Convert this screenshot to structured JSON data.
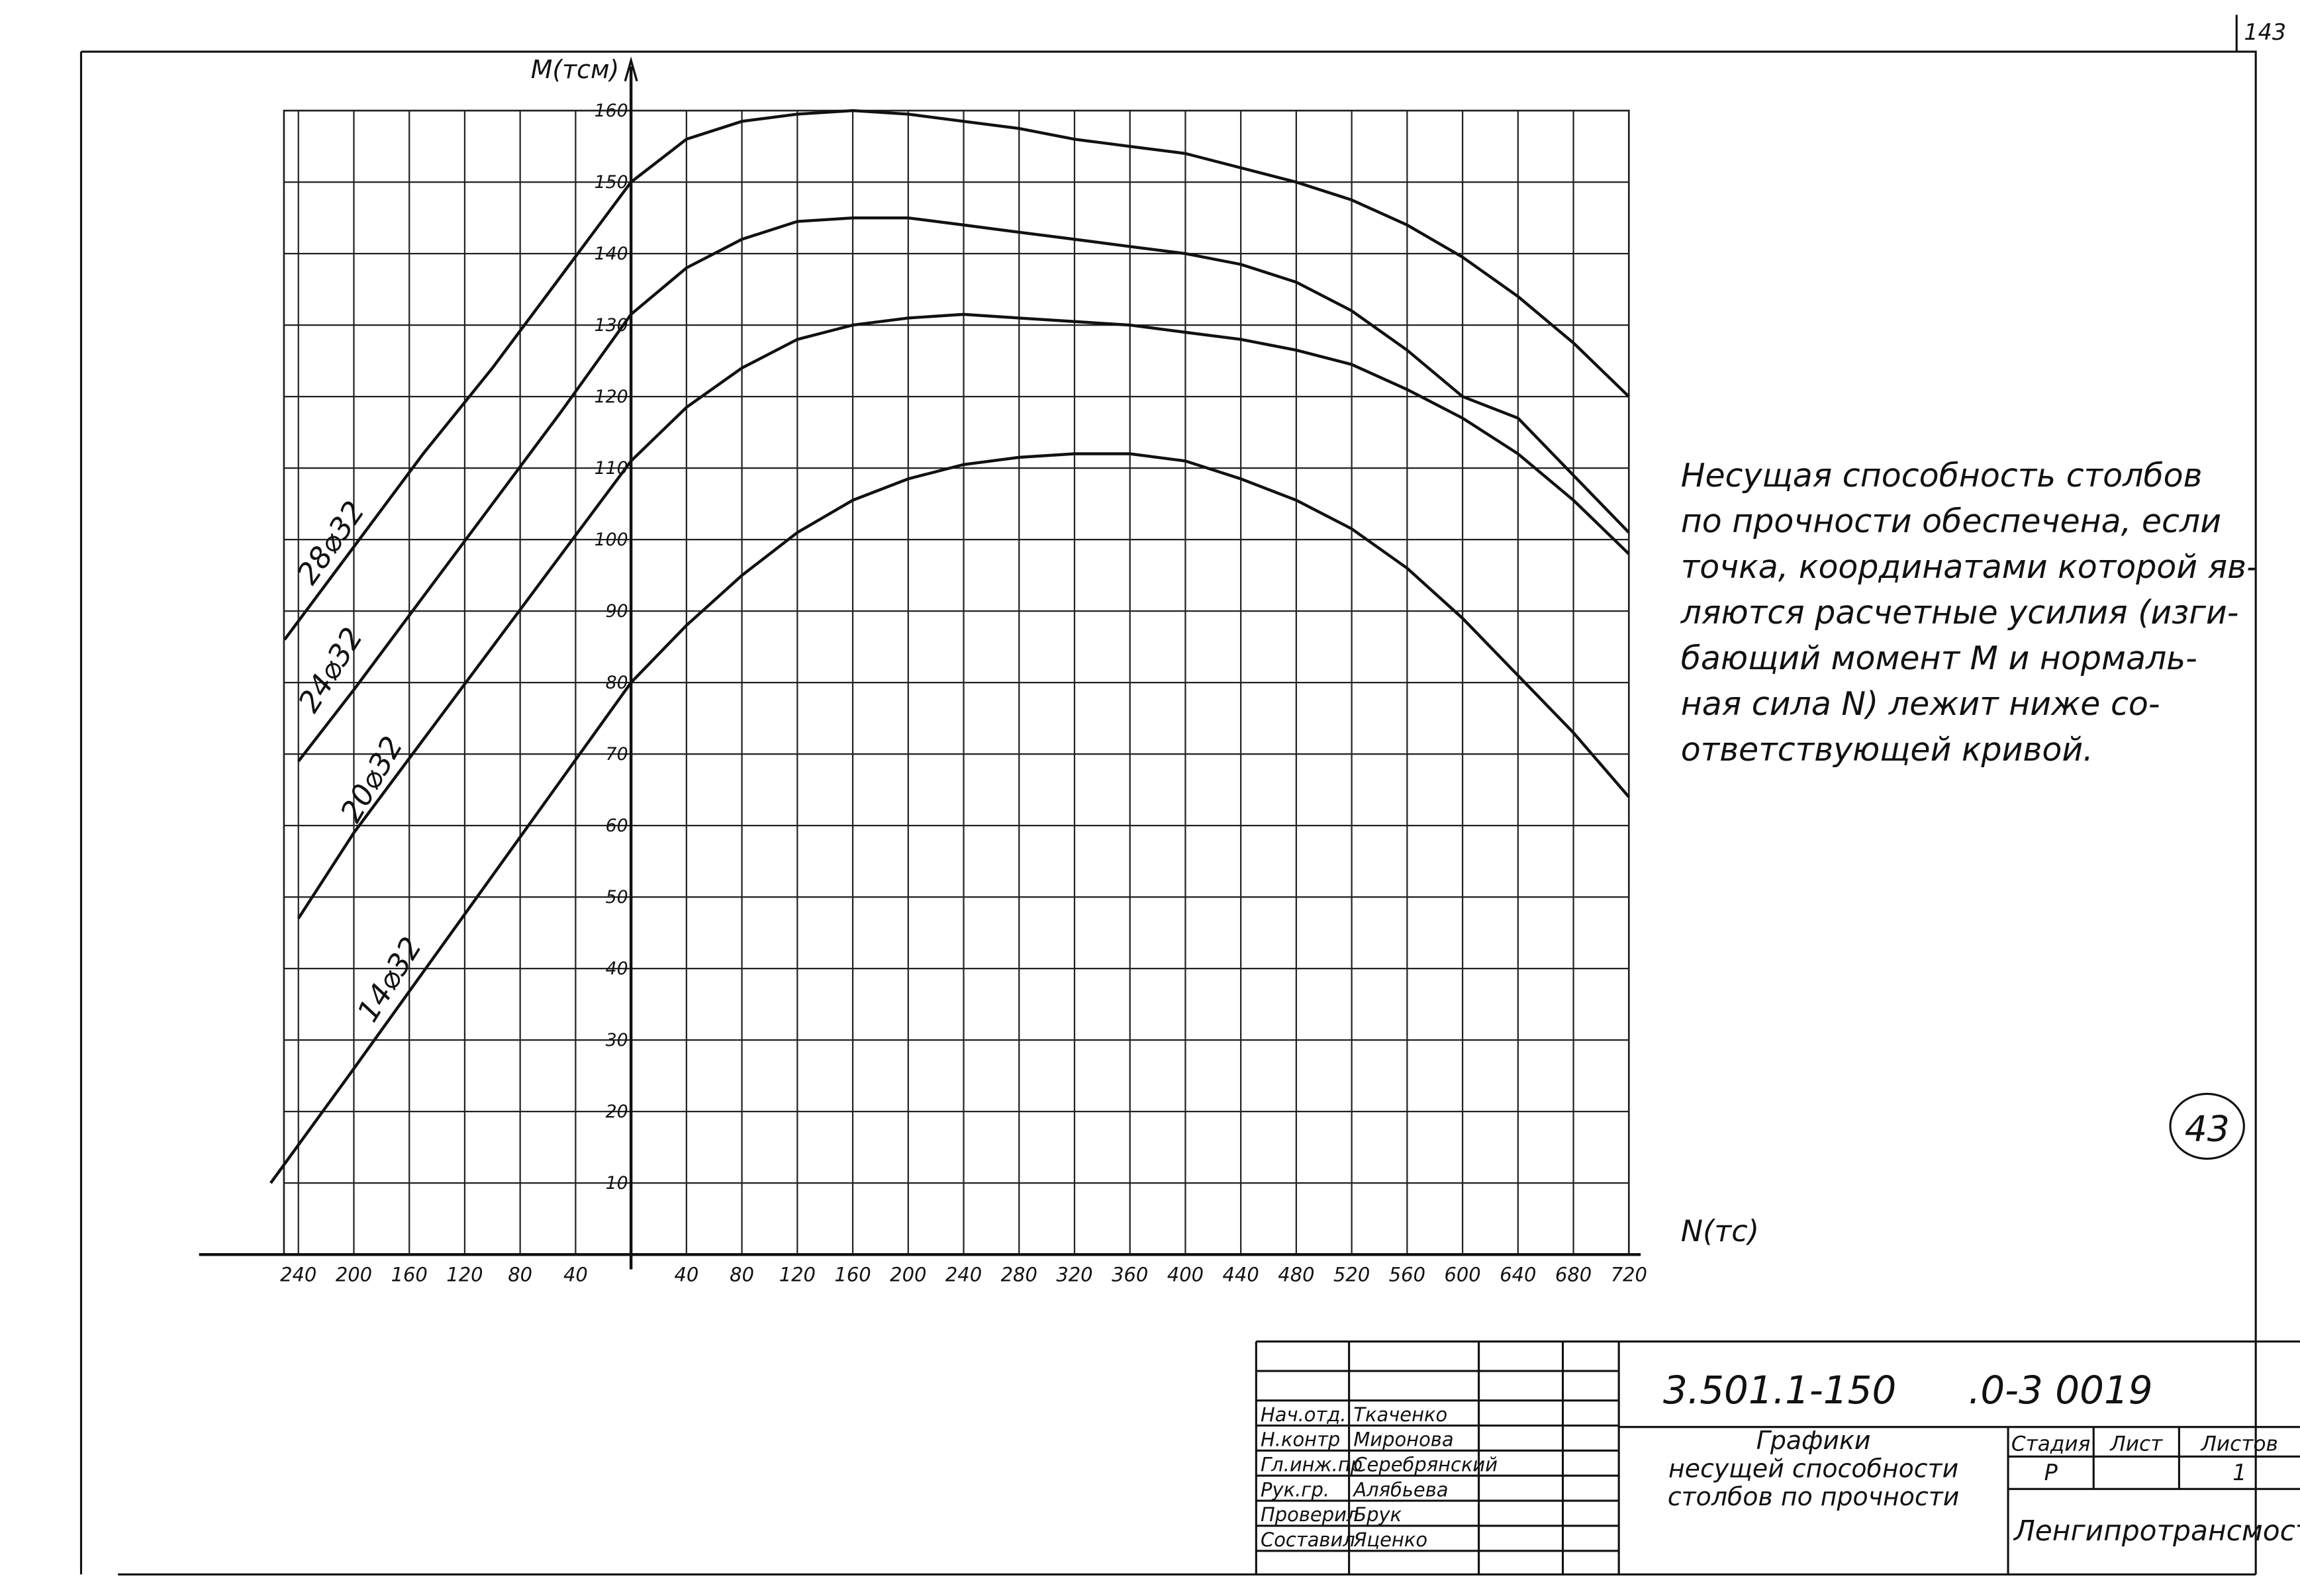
{
  "chart_data": {
    "type": "line",
    "x_label": "N(тс)",
    "y_label": "M(тсм)",
    "xlim": [
      -260,
      720
    ],
    "ylim": [
      0,
      160
    ],
    "xticks": [
      {
        "value": -240,
        "label": "240"
      },
      {
        "value": -200,
        "label": "200"
      },
      {
        "value": -160,
        "label": "160"
      },
      {
        "value": -120,
        "label": "120"
      },
      {
        "value": -80,
        "label": "80"
      },
      {
        "value": -40,
        "label": "40"
      },
      40,
      80,
      120,
      160,
      200,
      240,
      280,
      320,
      360,
      400,
      440,
      480,
      520,
      560,
      600,
      640,
      680,
      720
    ],
    "yticks": [
      10,
      20,
      30,
      40,
      50,
      60,
      70,
      80,
      90,
      100,
      110,
      120,
      130,
      140,
      150,
      160
    ],
    "grid": true,
    "series": [
      {
        "name": "28⌀32",
        "color": "#111111",
        "x": [
          -250,
          -200,
          -150,
          -100,
          -50,
          0,
          40,
          80,
          120,
          160,
          200,
          240,
          280,
          320,
          360,
          400,
          440,
          480,
          520,
          560,
          600,
          640,
          680,
          720
        ],
        "values": [
          86,
          99,
          112,
          124,
          137,
          150,
          156,
          158.5,
          159.5,
          160,
          159.5,
          158.5,
          157.5,
          156,
          155,
          154,
          152,
          150,
          147.5,
          144,
          139.5,
          134,
          127.5,
          120
        ]
      },
      {
        "name": "24⌀32",
        "color": "#111111",
        "x": [
          -240,
          -200,
          -150,
          -100,
          -50,
          0,
          40,
          80,
          120,
          160,
          200,
          240,
          280,
          320,
          360,
          400,
          440,
          480,
          520,
          560,
          600,
          640,
          680,
          720
        ],
        "values": [
          69,
          79,
          92,
          105,
          118,
          131.5,
          138,
          142,
          144.5,
          145,
          145,
          144,
          143,
          142,
          141,
          140,
          138.5,
          136,
          132,
          126.5,
          120,
          117,
          109,
          101
        ]
      },
      {
        "name": "20⌀32",
        "color": "#111111",
        "x": [
          -240,
          -200,
          -150,
          -100,
          -50,
          0,
          40,
          80,
          120,
          160,
          200,
          240,
          280,
          320,
          360,
          400,
          440,
          480,
          520,
          560,
          600,
          640,
          680,
          720
        ],
        "values": [
          47,
          59,
          72,
          85,
          98,
          111,
          118.5,
          124,
          128,
          130,
          131,
          131.5,
          131,
          130.5,
          130,
          129,
          128,
          126.5,
          124.5,
          121,
          117,
          112,
          105.5,
          98
        ]
      },
      {
        "name": "14⌀32",
        "color": "#111111",
        "x": [
          -260,
          -200,
          -150,
          -100,
          -50,
          0,
          40,
          80,
          120,
          160,
          200,
          240,
          280,
          320,
          360,
          400,
          440,
          480,
          520,
          560,
          600,
          640,
          680,
          720
        ],
        "values": [
          10,
          26,
          39.5,
          53,
          66.5,
          80,
          88,
          95,
          101,
          105.5,
          108.5,
          110.5,
          111.5,
          112,
          112,
          111,
          108.5,
          105.5,
          101.5,
          96,
          89,
          81,
          73,
          64
        ]
      }
    ]
  },
  "note": [
    "Несущая  способность  столбов",
    "по прочности  обеспечена, если",
    "точка, координатами  которой яв-",
    "ляются расчетные  усилия (изги-",
    "бающий  момент  M  и  нормаль-",
    "ная сила  N) лежит  ниже  со-",
    "ответствующей  кривой."
  ],
  "sheet_number": "143",
  "stamp": "43",
  "title_block": {
    "code": "3.501.1-150",
    "doc": ".0-3 0019",
    "roles": [
      "Нач.отд.",
      "Н.контр",
      "Гл.инж.пр",
      "Рук.гр.",
      "Проверил",
      "Составил"
    ],
    "names": [
      "Ткаченко",
      "Миронова",
      "Серебрянский",
      "Алябьева",
      "Брук",
      "Яценко"
    ],
    "title": [
      "Графики",
      "несущей способности",
      "столбов по прочности"
    ],
    "stage_header": "Стадия",
    "sheet_header": "Лист",
    "sheets_header": "Листов",
    "stage": "Р",
    "sheets": "1",
    "org": "Ленгипротрансмост"
  }
}
